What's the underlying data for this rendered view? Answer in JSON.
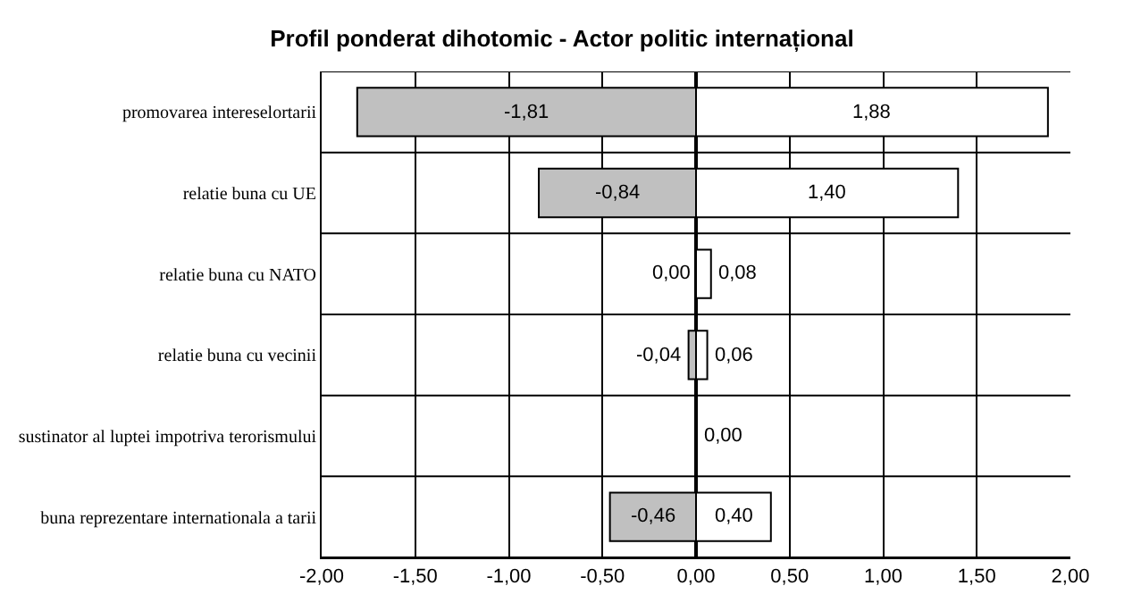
{
  "chart_data": {
    "type": "bar",
    "orientation": "horizontal",
    "stacked": true,
    "title": "Profil ponderat dihotomic - Actor politic internațional",
    "categories": [
      "promovarea intereselortarii",
      "relatie buna cu UE",
      "relatie buna cu NATO",
      "relatie buna cu vecinii",
      "sustinator al luptei impotriva terorismului",
      "buna reprezentare internationala a tarii"
    ],
    "series": [
      {
        "color": "#c0c0c0",
        "values": [
          -1.81,
          -0.84,
          0.0,
          -0.04,
          null,
          -0.46
        ],
        "value_labels": [
          "-1,81",
          "-0,84",
          "0,00",
          "-0,04",
          null,
          "-0,46"
        ]
      },
      {
        "color": "#ffffff",
        "values": [
          1.88,
          1.4,
          0.08,
          0.06,
          0.0,
          0.4
        ],
        "value_labels": [
          "1,88",
          "1,40",
          "0,08",
          "0,06",
          "0,00",
          "0,40"
        ]
      }
    ],
    "xlim": [
      -2,
      2
    ],
    "xticks": [
      {
        "value": -2,
        "label": "-2,00"
      },
      {
        "value": -1.5,
        "label": "-1,50"
      },
      {
        "value": -1,
        "label": "-1,00"
      },
      {
        "value": -0.5,
        "label": "-0,50"
      },
      {
        "value": 0,
        "label": "0,00"
      },
      {
        "value": 0.5,
        "label": "0,50"
      },
      {
        "value": 1,
        "label": "1,00"
      },
      {
        "value": 1.5,
        "label": "1,50"
      },
      {
        "value": 2,
        "label": "2,00"
      }
    ],
    "grid": true,
    "legend": false
  }
}
